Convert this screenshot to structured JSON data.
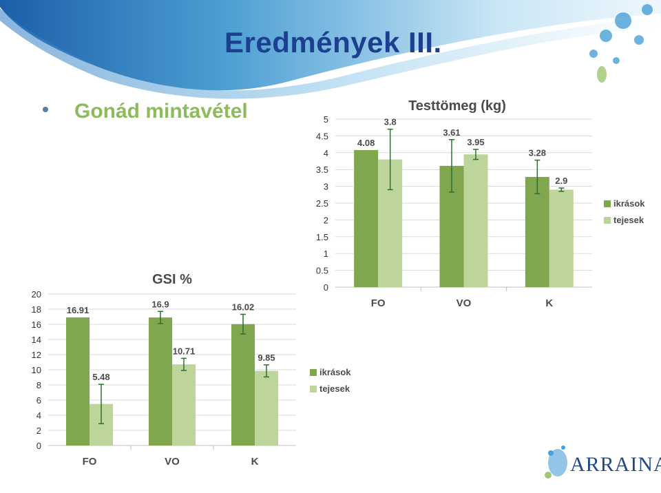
{
  "slide": {
    "title": "Eredmények III.",
    "bullet": "Gonád mintavétel",
    "logo_text": "ARRAINA"
  },
  "colors": {
    "title": "#1d3f8f",
    "bullet_text": "#8cba5c",
    "ikrasok": "#80a74d",
    "tejesek": "#bdd49a",
    "error_bar": "#2f6e2f"
  },
  "chart_data": [
    {
      "type": "bar",
      "title": "Testtömeg (kg)",
      "categories": [
        "FO",
        "VO",
        "K"
      ],
      "series": [
        {
          "name": "ikrások",
          "values": [
            4.08,
            3.61,
            3.28
          ],
          "labels": [
            "4.08",
            "3.61",
            "3.28"
          ],
          "error": [
            0.0,
            0.78,
            0.5
          ]
        },
        {
          "name": "tejesek",
          "values": [
            3.8,
            3.95,
            2.9
          ],
          "labels": [
            "3.8",
            "3.95",
            "2.9"
          ],
          "error": [
            0.9,
            0.15,
            0.05
          ]
        }
      ],
      "ylim": [
        0,
        5
      ],
      "yticks": [
        "0",
        "0.5",
        "1",
        "1.5",
        "2",
        "2.5",
        "3",
        "3.5",
        "4",
        "4.5",
        "5"
      ],
      "grid": true,
      "legend": "right"
    },
    {
      "type": "bar",
      "title": "GSI %",
      "categories": [
        "FO",
        "VO",
        "K"
      ],
      "series": [
        {
          "name": "ikrások",
          "values": [
            16.91,
            16.9,
            16.02
          ],
          "labels": [
            "16.91",
            "16.9",
            "16.02"
          ],
          "error": [
            0.0,
            0.8,
            1.3
          ]
        },
        {
          "name": "tejesek",
          "values": [
            5.48,
            10.71,
            9.85
          ],
          "labels": [
            "5.48",
            "10.71",
            "9.85"
          ],
          "error": [
            2.6,
            0.8,
            0.8
          ]
        }
      ],
      "ylim": [
        0,
        20
      ],
      "yticks": [
        "0",
        "2",
        "4",
        "6",
        "8",
        "10",
        "12",
        "14",
        "16",
        "18",
        "20"
      ],
      "grid": true,
      "legend": "right"
    }
  ]
}
